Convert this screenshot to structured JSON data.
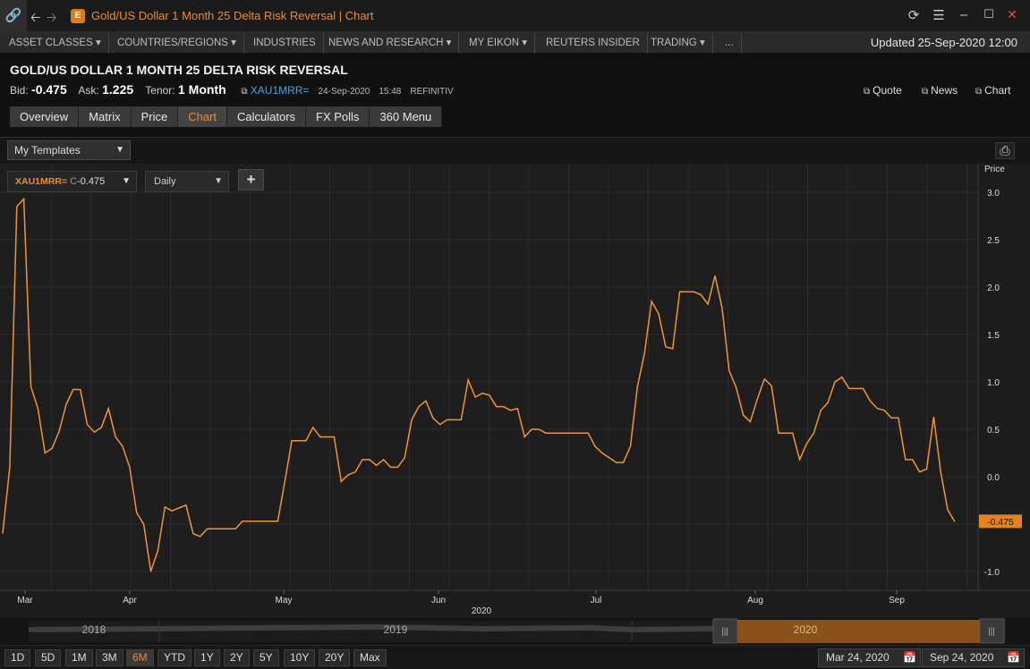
{
  "window": {
    "title": "Gold/US Dollar 1 Month 25 Delta Risk Reversal | Chart",
    "app_icon": "eikon-logo-icon",
    "accent": "#f08a2a"
  },
  "nav": {
    "items": [
      {
        "label": "ASSET CLASSES ▾"
      },
      {
        "label": "COUNTRIES/REGIONS ▾"
      },
      {
        "label": "INDUSTRIES"
      },
      {
        "label": "NEWS AND RESEARCH ▾"
      },
      {
        "label": "MY EIKON ▾"
      },
      {
        "label": "REUTERS INSIDER"
      },
      {
        "label": "TRADING ▾"
      },
      {
        "label": "..."
      }
    ],
    "updated": "Updated 25-Sep-2020 12:00"
  },
  "instrument": {
    "title": "GOLD/US DOLLAR 1 MONTH 25 DELTA RISK REVERSAL",
    "bid_label": "Bid:",
    "bid": "-0.475",
    "ask_label": "Ask:",
    "ask": "1.225",
    "tenor_label": "Tenor:",
    "tenor": "1 Month",
    "ric": "XAU1MRR=",
    "date": "24-Sep-2020",
    "time": "15:48",
    "source": "REFINITIV",
    "links": [
      "Quote",
      "News",
      "Chart"
    ]
  },
  "tabs": [
    {
      "label": "Overview",
      "active": false
    },
    {
      "label": "Matrix",
      "active": false
    },
    {
      "label": "Price",
      "active": false
    },
    {
      "label": "Chart",
      "active": true
    },
    {
      "label": "Calculators",
      "active": false
    },
    {
      "label": "FX Polls",
      "active": false
    },
    {
      "label": "360 Menu",
      "active": false
    }
  ],
  "toolbar": {
    "templates": "My Templates"
  },
  "chart_controls": {
    "series_ric": "XAU1MRR=",
    "series_c": "C",
    "series_value": "-0.475",
    "interval": "Daily",
    "add": "+"
  },
  "chart_data": {
    "type": "line",
    "ylabel": "Price",
    "ylim": [
      -1.1,
      3.2
    ],
    "y_ticks": [
      "3.0",
      "2.5",
      "2.0",
      "1.5",
      "1.0",
      "0.5",
      "0.0",
      "-0.5",
      "-1.0"
    ],
    "x_ticks": [
      "Mar",
      "Apr",
      "May",
      "Jun",
      "Jul",
      "Aug",
      "Sep"
    ],
    "year_label": "2020",
    "last_value": "-0.475",
    "line_color": "#f0943a",
    "series": [
      {
        "values": [
          -0.6,
          0.1,
          2.85,
          2.93,
          0.95,
          0.72,
          0.25,
          0.3,
          0.48,
          0.76,
          0.92,
          0.92,
          0.55,
          0.47,
          0.52,
          0.72,
          0.42,
          0.32,
          0.1,
          -0.38,
          -0.5,
          -1.0,
          -0.78,
          -0.32,
          -0.36,
          -0.33,
          -0.3,
          -0.6,
          -0.63,
          -0.55,
          -0.55,
          -0.55,
          -0.55,
          -0.55,
          -0.47,
          -0.47,
          -0.47,
          -0.47,
          -0.47,
          -0.47,
          -0.05,
          0.38,
          0.38,
          0.38,
          0.52,
          0.42,
          0.42,
          0.42,
          -0.05,
          0.02,
          0.05,
          0.18,
          0.18,
          0.12,
          0.18,
          0.1,
          0.1,
          0.2,
          0.6,
          0.74,
          0.8,
          0.62,
          0.55,
          0.6,
          0.6,
          0.6,
          1.02,
          0.84,
          0.88,
          0.86,
          0.74,
          0.74,
          0.7,
          0.72,
          0.42,
          0.5,
          0.5,
          0.46,
          0.46,
          0.46,
          0.46,
          0.46,
          0.46,
          0.46,
          0.32,
          0.25,
          0.2,
          0.15,
          0.15,
          0.32,
          0.95,
          1.3,
          1.85,
          1.72,
          1.37,
          1.35,
          1.95,
          1.95,
          1.95,
          1.92,
          1.82,
          2.12,
          1.78,
          1.12,
          0.94,
          0.65,
          0.58,
          0.82,
          1.03,
          0.96,
          0.46,
          0.46,
          0.46,
          0.18,
          0.35,
          0.46,
          0.7,
          0.78,
          1.0,
          1.05,
          0.93,
          0.93,
          0.93,
          0.8,
          0.72,
          0.7,
          0.62,
          0.62,
          0.18,
          0.18,
          0.05,
          0.08,
          0.63,
          0.05,
          -0.35,
          -0.475
        ]
      }
    ]
  },
  "navigator": {
    "years": [
      "2018",
      "2019",
      "2020"
    ]
  },
  "ranges": [
    {
      "label": "1D",
      "active": false
    },
    {
      "label": "5D",
      "active": false
    },
    {
      "label": "1M",
      "active": false
    },
    {
      "label": "3M",
      "active": false
    },
    {
      "label": "6M",
      "active": true
    },
    {
      "label": "YTD",
      "active": false
    },
    {
      "label": "1Y",
      "active": false
    },
    {
      "label": "2Y",
      "active": false
    },
    {
      "label": "5Y",
      "active": false
    },
    {
      "label": "10Y",
      "active": false
    },
    {
      "label": "20Y",
      "active": false
    },
    {
      "label": "Max",
      "active": false
    }
  ],
  "date_from": "Mar 24, 2020",
  "date_to": "Sep 24, 2020"
}
